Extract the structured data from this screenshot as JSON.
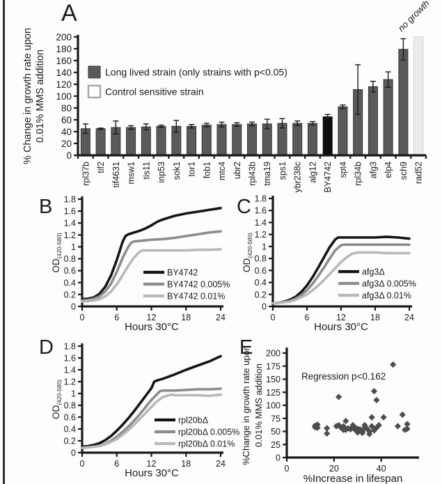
{
  "colors": {
    "axis": "#1a1a1a",
    "text": "#1a1a1a",
    "bar": "#5a5a5a",
    "bar_edge": "#353535",
    "bar_highlight": "#0d0d0d",
    "bar_control": "#ececec",
    "bar_control_edge": "#cfcfcf",
    "legend_outline": "#a6a6a6",
    "line_black": "#141414",
    "line_gray": "#8c8c8c",
    "line_light": "#b8b8b8",
    "scatter": "#4d4d4d",
    "border": "#2b2b2b"
  },
  "panels": {
    "A": {
      "letter": "A"
    },
    "B": {
      "letter": "B"
    },
    "C": {
      "letter": "C"
    },
    "D": {
      "letter": "D"
    },
    "E": {
      "letter": "E"
    }
  },
  "chart_data": [
    {
      "panel": "A",
      "type": "bar",
      "ylabel_lines": [
        "% Change in growth rate upon",
        "0.01% MMS addition"
      ],
      "ylim": [
        0,
        200
      ],
      "ytick_step": 20,
      "grid": false,
      "legend_position": "upper-left-inside",
      "categories": [
        "rpl37b",
        "tif2",
        "tif4631",
        "msw1",
        "tis11",
        "inp53",
        "sok1",
        "tor1",
        "fob1",
        "mtc4",
        "ubr2",
        "rpl43b",
        "tma19",
        "sps1",
        "ybr238c",
        "alg12",
        "BY4742",
        "spt4",
        "rpl34b",
        "afg3",
        "elp4",
        "sch9",
        "rad52"
      ],
      "values": [
        45,
        45,
        47,
        47,
        48,
        49,
        49,
        49,
        51,
        52,
        52,
        53,
        53,
        54,
        54,
        54,
        65,
        82,
        111,
        116,
        128,
        179,
        200
      ],
      "errors": [
        8,
        1,
        11,
        3,
        5,
        2,
        10,
        3,
        3,
        4,
        3,
        3,
        8,
        8,
        4,
        3,
        4,
        3,
        42,
        9,
        13,
        18,
        0
      ],
      "highlight_category": "BY4742",
      "control_category": "rad52",
      "control_annotation": "no growth",
      "legend": [
        {
          "label": "Long lived strain (only strains with p<0.05)",
          "swatch": "filled"
        },
        {
          "label": "Control sensitive strain",
          "swatch": "outline"
        }
      ]
    },
    {
      "panel": "B",
      "type": "line",
      "ylabel": "OD",
      "ylabel_sub": "(420-580)",
      "xlabel": "Hours 30°C",
      "xlim": [
        0,
        24
      ],
      "xticks": [
        0,
        6,
        12,
        18,
        24
      ],
      "ylim": [
        0,
        1.8
      ],
      "ytick_step": 0.2,
      "grid": false,
      "legend_position": "center-right-inside",
      "series": [
        {
          "name": "BY4742",
          "color_key": "line_black",
          "points": [
            [
              0,
              0.12
            ],
            [
              1,
              0.13
            ],
            [
              2,
              0.15
            ],
            [
              3,
              0.21
            ],
            [
              4,
              0.33
            ],
            [
              5,
              0.52
            ],
            [
              6,
              0.78
            ],
            [
              7,
              1.08
            ],
            [
              7.5,
              1.18
            ],
            [
              8,
              1.21
            ],
            [
              9,
              1.24
            ],
            [
              10,
              1.27
            ],
            [
              11,
              1.31
            ],
            [
              12,
              1.36
            ],
            [
              13,
              1.42
            ],
            [
              14,
              1.46
            ],
            [
              16,
              1.52
            ],
            [
              18,
              1.56
            ],
            [
              20,
              1.59
            ],
            [
              22,
              1.62
            ],
            [
              24,
              1.65
            ]
          ]
        },
        {
          "name": "BY4742 0.005%",
          "color_key": "line_gray",
          "points": [
            [
              0,
              0.1
            ],
            [
              1,
              0.11
            ],
            [
              2,
              0.13
            ],
            [
              3,
              0.17
            ],
            [
              4,
              0.25
            ],
            [
              5,
              0.38
            ],
            [
              6,
              0.58
            ],
            [
              7,
              0.81
            ],
            [
              8,
              1.0
            ],
            [
              8.5,
              1.07
            ],
            [
              9,
              1.09
            ],
            [
              10,
              1.1
            ],
            [
              12,
              1.12
            ],
            [
              14,
              1.13
            ],
            [
              16,
              1.15
            ],
            [
              18,
              1.18
            ],
            [
              20,
              1.21
            ],
            [
              22,
              1.24
            ],
            [
              24,
              1.26
            ]
          ]
        },
        {
          "name": "BY4742 0.01%",
          "color_key": "line_light",
          "points": [
            [
              0,
              0.08
            ],
            [
              1,
              0.09
            ],
            [
              2,
              0.1
            ],
            [
              3,
              0.12
            ],
            [
              4,
              0.17
            ],
            [
              5,
              0.25
            ],
            [
              6,
              0.37
            ],
            [
              7,
              0.52
            ],
            [
              8,
              0.68
            ],
            [
              9,
              0.82
            ],
            [
              10,
              0.92
            ],
            [
              10.5,
              0.94
            ],
            [
              11,
              0.94
            ],
            [
              12,
              0.94
            ],
            [
              14,
              0.94
            ],
            [
              16,
              0.94
            ],
            [
              18,
              0.94
            ],
            [
              20,
              0.95
            ],
            [
              22,
              0.95
            ],
            [
              24,
              0.96
            ]
          ]
        }
      ]
    },
    {
      "panel": "C",
      "type": "line",
      "ylabel": "OD",
      "ylabel_sub": "(420-580)",
      "xlabel": "Hours 30°C",
      "xlim": [
        0,
        24
      ],
      "xticks": [
        0,
        6,
        12,
        18,
        24
      ],
      "ylim": [
        0,
        1.8
      ],
      "ytick_step": 0.2,
      "grid": false,
      "legend_position": "center-right-inside",
      "series": [
        {
          "name": "afg3Δ",
          "color_key": "line_black",
          "points": [
            [
              0,
              0.05
            ],
            [
              1,
              0.06
            ],
            [
              2,
              0.08
            ],
            [
              3,
              0.11
            ],
            [
              4,
              0.16
            ],
            [
              5,
              0.24
            ],
            [
              6,
              0.35
            ],
            [
              7,
              0.49
            ],
            [
              8,
              0.65
            ],
            [
              9,
              0.82
            ],
            [
              10,
              0.99
            ],
            [
              11,
              1.12
            ],
            [
              11.5,
              1.15
            ],
            [
              12,
              1.15
            ],
            [
              14,
              1.15
            ],
            [
              16,
              1.15
            ],
            [
              18,
              1.15
            ],
            [
              20,
              1.16
            ],
            [
              22,
              1.15
            ],
            [
              24,
              1.13
            ]
          ]
        },
        {
          "name": "afg3Δ 0.005%",
          "color_key": "line_gray",
          "points": [
            [
              0,
              0.05
            ],
            [
              1,
              0.06
            ],
            [
              2,
              0.07
            ],
            [
              3,
              0.09
            ],
            [
              4,
              0.13
            ],
            [
              5,
              0.19
            ],
            [
              6,
              0.27
            ],
            [
              7,
              0.38
            ],
            [
              8,
              0.51
            ],
            [
              9,
              0.65
            ],
            [
              10,
              0.8
            ],
            [
              11,
              0.94
            ],
            [
              12,
              1.02
            ],
            [
              12.5,
              1.03
            ],
            [
              13,
              1.03
            ],
            [
              16,
              1.03
            ],
            [
              20,
              1.03
            ],
            [
              24,
              1.03
            ]
          ]
        },
        {
          "name": "afg3Δ 0.01%",
          "color_key": "line_light",
          "points": [
            [
              0,
              0.05
            ],
            [
              1,
              0.06
            ],
            [
              2,
              0.07
            ],
            [
              3,
              0.08
            ],
            [
              4,
              0.11
            ],
            [
              5,
              0.15
            ],
            [
              6,
              0.2
            ],
            [
              7,
              0.27
            ],
            [
              8,
              0.35
            ],
            [
              9,
              0.44
            ],
            [
              10,
              0.54
            ],
            [
              11,
              0.64
            ],
            [
              12,
              0.74
            ],
            [
              13,
              0.82
            ],
            [
              14,
              0.88
            ],
            [
              15,
              0.9
            ],
            [
              16,
              0.9
            ],
            [
              18,
              0.9
            ],
            [
              20,
              0.89
            ],
            [
              22,
              0.89
            ],
            [
              24,
              0.89
            ]
          ]
        }
      ]
    },
    {
      "panel": "D",
      "type": "line",
      "ylabel": "OD",
      "ylabel_sub": "(420-580)",
      "xlabel": "Hours 30°C",
      "xlim": [
        0,
        24
      ],
      "xticks": [
        0,
        6,
        12,
        18,
        24
      ],
      "ylim": [
        0,
        1.8
      ],
      "ytick_step": 0.2,
      "grid": false,
      "legend_position": "center-right-inside",
      "series": [
        {
          "name": "rpl20bΔ",
          "color_key": "line_black",
          "points": [
            [
              0,
              0.1
            ],
            [
              1,
              0.11
            ],
            [
              2,
              0.13
            ],
            [
              3,
              0.16
            ],
            [
              4,
              0.21
            ],
            [
              5,
              0.28
            ],
            [
              6,
              0.37
            ],
            [
              7,
              0.47
            ],
            [
              8,
              0.58
            ],
            [
              9,
              0.7
            ],
            [
              10,
              0.83
            ],
            [
              11,
              0.96
            ],
            [
              12,
              1.09
            ],
            [
              12.5,
              1.2
            ],
            [
              13,
              1.22
            ],
            [
              14,
              1.25
            ],
            [
              16,
              1.32
            ],
            [
              18,
              1.4
            ],
            [
              20,
              1.47
            ],
            [
              22,
              1.54
            ],
            [
              24,
              1.63
            ]
          ]
        },
        {
          "name": "rpl20bΔ 0.005%",
          "color_key": "line_gray",
          "points": [
            [
              0,
              0.08
            ],
            [
              1,
              0.09
            ],
            [
              2,
              0.1
            ],
            [
              3,
              0.12
            ],
            [
              4,
              0.15
            ],
            [
              5,
              0.2
            ],
            [
              6,
              0.27
            ],
            [
              7,
              0.35
            ],
            [
              8,
              0.44
            ],
            [
              9,
              0.54
            ],
            [
              10,
              0.65
            ],
            [
              11,
              0.77
            ],
            [
              12,
              0.89
            ],
            [
              13,
              0.99
            ],
            [
              13.5,
              1.04
            ],
            [
              14,
              1.05
            ],
            [
              16,
              1.05
            ],
            [
              18,
              1.06
            ],
            [
              20,
              1.07
            ],
            [
              22,
              1.07
            ],
            [
              24,
              1.08
            ]
          ]
        },
        {
          "name": "rpl20bΔ 0.01%",
          "color_key": "line_light",
          "points": [
            [
              0,
              0.08
            ],
            [
              1,
              0.09
            ],
            [
              2,
              0.1
            ],
            [
              3,
              0.11
            ],
            [
              4,
              0.14
            ],
            [
              5,
              0.18
            ],
            [
              6,
              0.23
            ],
            [
              7,
              0.3
            ],
            [
              8,
              0.38
            ],
            [
              9,
              0.47
            ],
            [
              10,
              0.57
            ],
            [
              11,
              0.67
            ],
            [
              12,
              0.77
            ],
            [
              13,
              0.87
            ],
            [
              14,
              0.94
            ],
            [
              15,
              0.97
            ],
            [
              15.5,
              0.98
            ],
            [
              16,
              0.97
            ],
            [
              18,
              0.97
            ],
            [
              20,
              0.97
            ],
            [
              22,
              0.96
            ],
            [
              24,
              0.98
            ]
          ]
        }
      ]
    },
    {
      "panel": "E",
      "type": "scatter",
      "ylabel_lines": [
        "%Change in growth rate upon",
        "0.01% MMS addition"
      ],
      "xlabel": "%Increase in lifespan",
      "annotation": "Regression p<0.162",
      "xlim": [
        0,
        56
      ],
      "xticks": [
        0,
        20,
        40
      ],
      "ylim": [
        0,
        200
      ],
      "ytick_step": 25,
      "grid": false,
      "marker": "diamond",
      "points": [
        [
          12,
          58
        ],
        [
          12,
          61
        ],
        [
          13,
          63
        ],
        [
          13,
          57
        ],
        [
          17,
          56
        ],
        [
          17,
          46
        ],
        [
          22,
          116
        ],
        [
          21,
          60
        ],
        [
          22,
          62
        ],
        [
          23,
          57
        ],
        [
          24,
          53
        ],
        [
          24,
          60
        ],
        [
          25,
          70
        ],
        [
          25,
          53
        ],
        [
          26,
          56
        ],
        [
          27,
          54
        ],
        [
          28,
          58
        ],
        [
          28,
          62
        ],
        [
          29,
          53
        ],
        [
          29,
          57
        ],
        [
          30,
          55
        ],
        [
          30,
          48
        ],
        [
          31,
          54
        ],
        [
          32,
          50
        ],
        [
          32,
          47
        ],
        [
          33,
          57
        ],
        [
          33,
          62
        ],
        [
          34,
          55
        ],
        [
          35,
          50
        ],
        [
          37,
          127
        ],
        [
          38,
          110
        ],
        [
          36,
          77
        ],
        [
          35,
          45
        ],
        [
          36,
          60
        ],
        [
          37,
          52
        ],
        [
          38,
          57
        ],
        [
          39,
          62
        ],
        [
          41,
          77
        ],
        [
          45,
          178
        ],
        [
          49,
          82
        ],
        [
          51,
          64
        ],
        [
          50,
          53
        ],
        [
          47,
          60
        ],
        [
          51,
          55
        ]
      ]
    }
  ]
}
